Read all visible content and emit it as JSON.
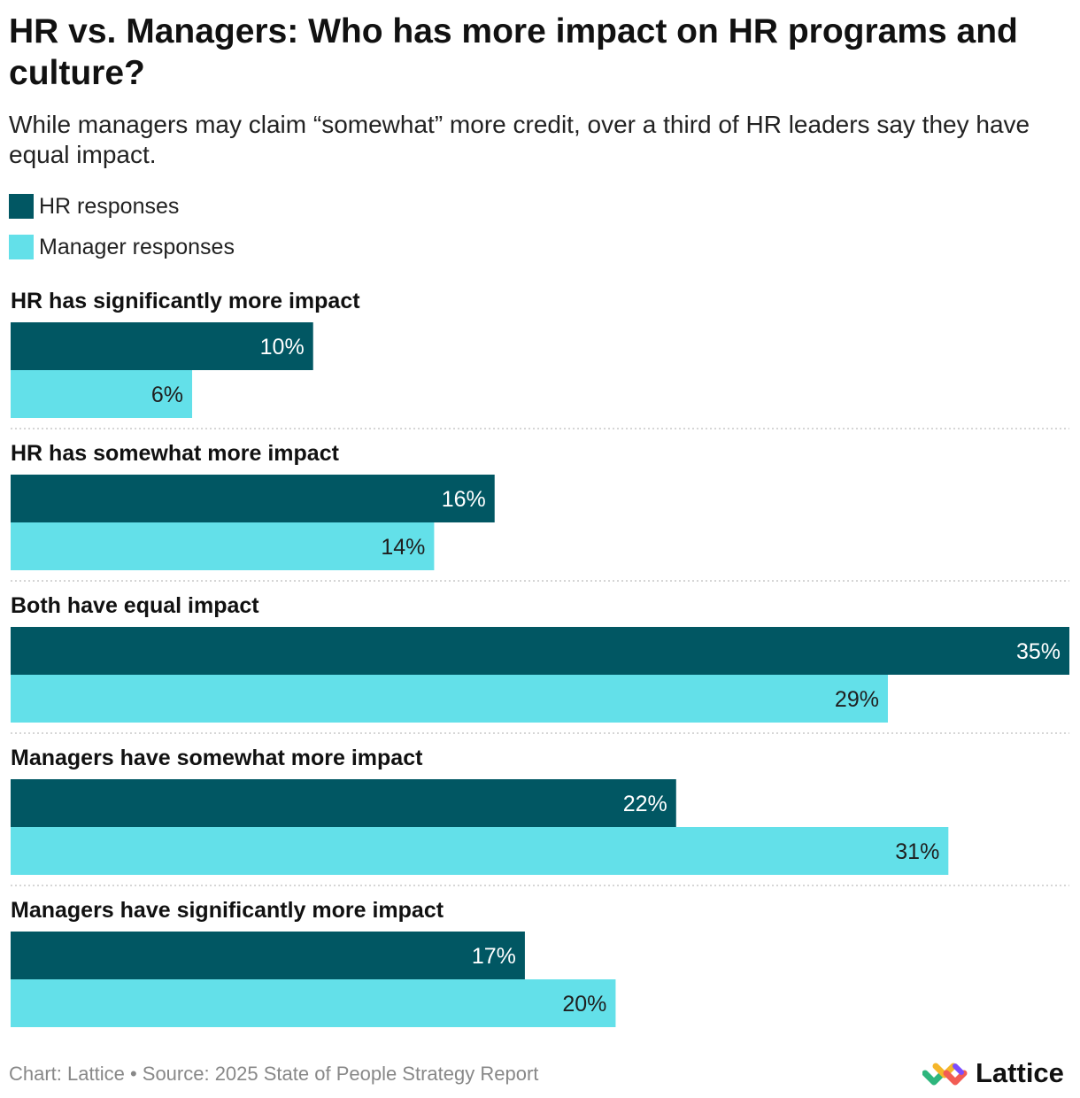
{
  "title": "HR vs. Managers: Who has more impact on HR programs and culture?",
  "subtitle": "While managers may claim “somewhat” more credit, over a third of HR leaders say they have equal impact.",
  "colors": {
    "hr": "#015763",
    "manager": "#63e0e9",
    "hr_label": "#ffffff",
    "manager_label": "#1f1f1f"
  },
  "chart_data": {
    "type": "bar",
    "orientation": "horizontal",
    "title": "HR vs. Managers: Who has more impact on HR programs and culture?",
    "categories": [
      "HR has significantly more impact",
      "HR has somewhat more impact",
      "Both have equal impact",
      "Managers have somewhat more impact",
      "Managers have significantly more impact"
    ],
    "series": [
      {
        "name": "HR responses",
        "color": "#015763",
        "values": [
          10,
          16,
          35,
          22,
          17
        ]
      },
      {
        "name": "Manager responses",
        "color": "#63e0e9",
        "values": [
          6,
          14,
          29,
          31,
          20
        ]
      }
    ],
    "unit": "%",
    "xlim": [
      0,
      35
    ],
    "legend": "top-left",
    "grid": false
  },
  "footer": "Chart: Lattice • Source: 2025 State of People Strategy Report",
  "brand": {
    "name": "Lattice",
    "logo_icon": "lattice-logo-icon"
  }
}
